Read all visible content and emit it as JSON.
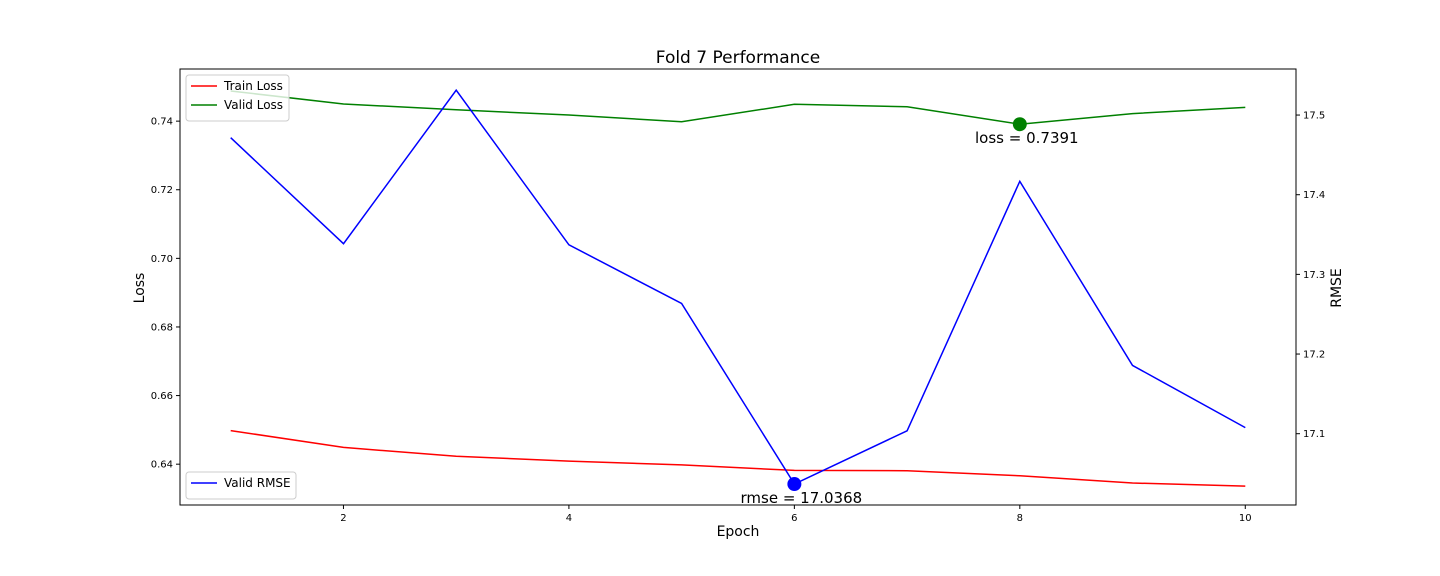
{
  "chart_data": {
    "type": "line",
    "title": "Fold 7 Performance",
    "xlabel": "Epoch",
    "ylabel": "Loss",
    "y2label": "RMSE",
    "x": [
      1,
      2,
      3,
      4,
      5,
      6,
      7,
      8,
      9,
      10
    ],
    "xlim": [
      0.55,
      10.45
    ],
    "xticks": [
      2,
      4,
      6,
      8,
      10
    ],
    "ylim": [
      0.6281,
      0.7552
    ],
    "yticks": [
      0.64,
      0.66,
      0.68,
      0.7,
      0.72,
      0.74
    ],
    "y2lim": [
      17.0105,
      17.5578
    ],
    "y2ticks": [
      17.1,
      17.2,
      17.3,
      17.4,
      17.5
    ],
    "series": [
      {
        "name": "Train Loss",
        "axis": "left",
        "color": "#ff0000",
        "values": [
          0.6498,
          0.6449,
          0.6423,
          0.6409,
          0.6398,
          0.6382,
          0.6381,
          0.6366,
          0.6345,
          0.6336
        ]
      },
      {
        "name": "Valid Loss",
        "axis": "left",
        "color": "#008000",
        "values": [
          0.7488,
          0.745,
          0.7433,
          0.7418,
          0.7398,
          0.7449,
          0.7442,
          0.7391,
          0.7422,
          0.744
        ]
      },
      {
        "name": "Valid RMSE",
        "axis": "right",
        "color": "#0000ff",
        "values": [
          17.4715,
          17.3385,
          17.5312,
          17.3371,
          17.2635,
          17.0368,
          17.1036,
          17.4168,
          17.1857,
          17.1077
        ]
      }
    ],
    "markers": [
      {
        "series": "Valid Loss",
        "x": 8,
        "y": 0.7391,
        "axis": "left",
        "color": "#008000",
        "label": "loss = 0.7391"
      },
      {
        "series": "Valid RMSE",
        "x": 6,
        "y": 17.0368,
        "axis": "right",
        "color": "#0000ff",
        "label": "rmse = 17.0368"
      }
    ],
    "legends": [
      {
        "placement": "upper-left",
        "entries": [
          "Train Loss",
          "Valid Loss"
        ]
      },
      {
        "placement": "lower-left",
        "entries": [
          "Valid RMSE"
        ]
      }
    ],
    "grid": false
  }
}
